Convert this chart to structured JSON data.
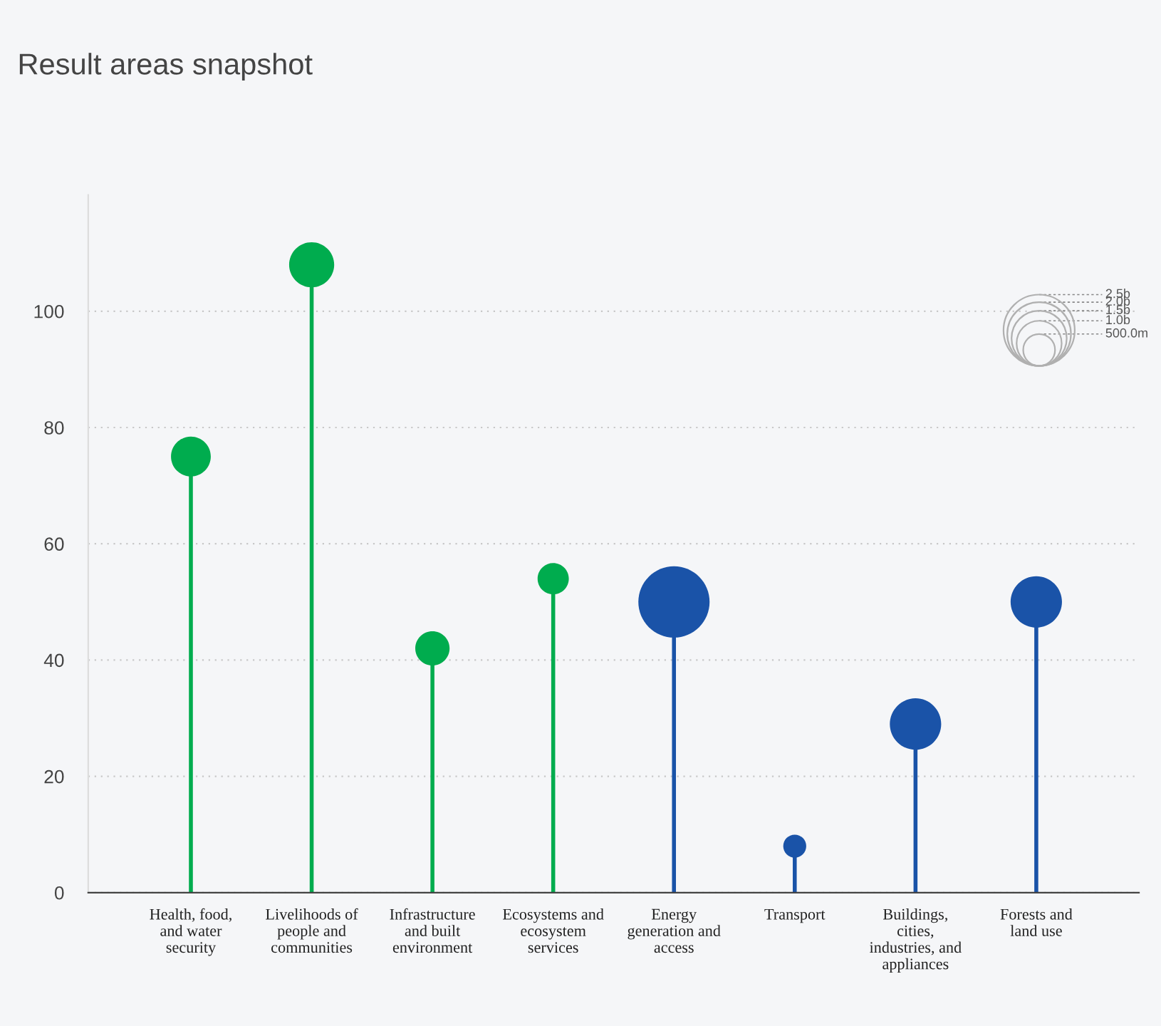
{
  "chart_data": {
    "type": "lollipop",
    "title": "Result areas snapshot",
    "categories": [
      "Health, food, and water security",
      "Livelihoods of people and communities",
      "Infrastructure and built environment",
      "Ecosystems and ecosystem services",
      "Energy generation and access",
      "Transport",
      "Buildings, cities, industries, and appliances",
      "Forests and land use"
    ],
    "values": [
      75,
      108,
      42,
      54,
      50,
      8,
      29,
      50
    ],
    "sizes": [
      0.78,
      1.0,
      0.58,
      0.48,
      2.5,
      0.26,
      1.3,
      1.3
    ],
    "size_legend": [
      {
        "value": 0.5,
        "label": "500.0m"
      },
      {
        "value": 1.0,
        "label": "1.0b"
      },
      {
        "value": 1.5,
        "label": "1.5b"
      },
      {
        "value": 2.0,
        "label": "2.0b"
      },
      {
        "value": 2.5,
        "label": "2.5b"
      }
    ],
    "colors": [
      "#00ac4e",
      "#00ac4e",
      "#00ac4e",
      "#00ac4e",
      "#1a53a8",
      "#1a53a8",
      "#1a53a8",
      "#1a53a8"
    ],
    "ylim": [
      0,
      120
    ],
    "yticks": [
      0,
      20,
      40,
      60,
      80,
      100
    ],
    "grid": "y",
    "marker": "circle"
  }
}
